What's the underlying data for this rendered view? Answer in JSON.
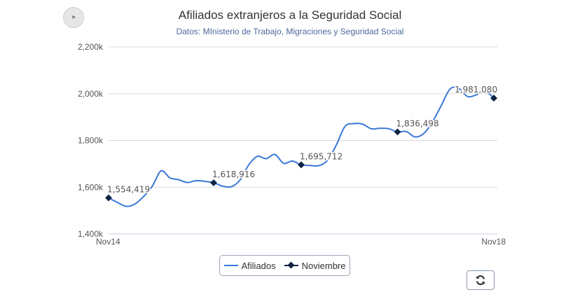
{
  "header": {
    "title": "Afiliados extranjeros a la Seguridad Social",
    "subtitle": "Datos: MInisterio de Trabajo, Migraciones y Seguridad Social",
    "logo_icon": "spain-flag-logo-icon"
  },
  "legend": {
    "position": "bottom-center",
    "items": [
      {
        "label": "Afiliados",
        "color": "#3a78d8",
        "symbol": "line"
      },
      {
        "label": "Noviembre",
        "color": "#0e2445",
        "symbol": "line-diamond"
      }
    ]
  },
  "controls": {
    "refresh_icon": "refresh-icon"
  },
  "chart_data": {
    "type": "line",
    "title": "Afiliados extranjeros a la Seguridad Social",
    "subtitle": "Datos: MInisterio de Trabajo, Migraciones y Seguridad Social",
    "xlabel": "",
    "ylabel": "",
    "x_tick_labels": [
      "Nov14",
      "Nov18"
    ],
    "y_ticks": [
      1400000,
      1600000,
      1800000,
      2000000,
      2200000
    ],
    "y_tick_labels": [
      "1,400k",
      "1,600k",
      "1,800k",
      "2,000k",
      "2,200k"
    ],
    "ylim": [
      1400000,
      2200000
    ],
    "grid": true,
    "colors": {
      "afiliados": "#3a78d8",
      "noviembre": "#0e2445",
      "grid": "#d9d9d9",
      "axis": "#c0d0e0"
    },
    "series": [
      {
        "name": "Afiliados",
        "values": [
          1554419,
          1535000,
          1518000,
          1528000,
          1560000,
          1605000,
          1670000,
          1640000,
          1632000,
          1620000,
          1628000,
          1625000,
          1618916,
          1605000,
          1602000,
          1630000,
          1695000,
          1732000,
          1722000,
          1740000,
          1702000,
          1712000,
          1695712,
          1693000,
          1692000,
          1715000,
          1780000,
          1860000,
          1872000,
          1870000,
          1850000,
          1852000,
          1850000,
          1836498,
          1838000,
          1815000,
          1830000,
          1880000,
          1950000,
          2020000,
          2022000,
          1988000,
          1995000,
          2010000,
          1981080
        ]
      },
      {
        "name": "Noviembre",
        "point_indices": [
          0,
          12,
          22,
          33,
          44
        ],
        "values": [
          1554419,
          1618916,
          1695712,
          1836498,
          1981080
        ],
        "labels": [
          "1,554,419",
          "1,618,916",
          "1,695,712",
          "1,836,498",
          "1,981,080"
        ]
      }
    ]
  }
}
